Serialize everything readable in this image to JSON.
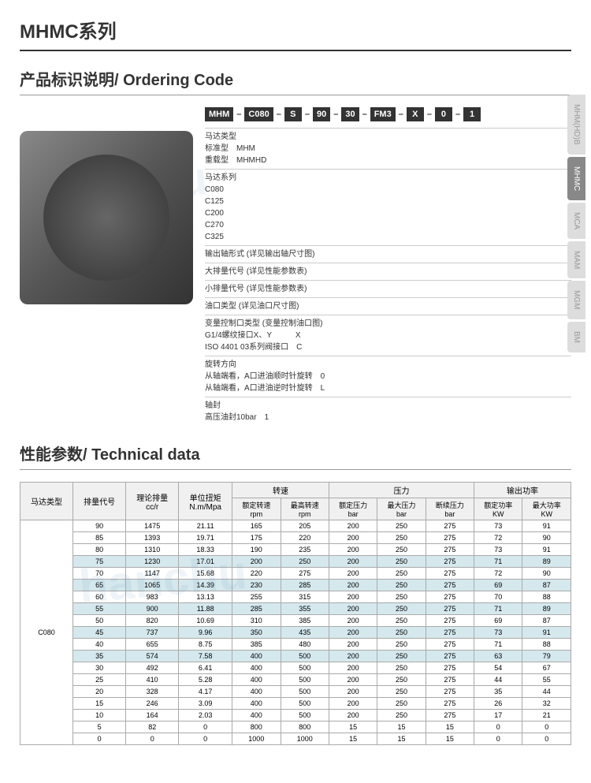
{
  "titles": {
    "main": "MHMC系列",
    "ordering": "产品标识说明/ Ordering Code",
    "technical": "性能参数/ Technical data"
  },
  "tabs": [
    "MHM(HD)B",
    "MHMC",
    "MCA",
    "MAM",
    "MGM",
    "BM"
  ],
  "active_tab_index": 1,
  "code_boxes": [
    "MHM",
    "C080",
    "S",
    "90",
    "30",
    "FM3",
    "X",
    "0",
    "1"
  ],
  "code_groups": [
    {
      "title": "马达类型",
      "lines": [
        "标准型　MHM",
        "重载型　MHMHD"
      ]
    },
    {
      "title": "马达系列",
      "lines": [
        "C080",
        "C125",
        "C200",
        "C270",
        "C325"
      ]
    },
    {
      "title": "输出轴形式 (详见输出轴尺寸图)",
      "lines": []
    },
    {
      "title": "大排量代号 (详见性能参数表)",
      "lines": []
    },
    {
      "title": "小排量代号 (详见性能参数表)",
      "lines": []
    },
    {
      "title": "油口类型 (详见油口尺寸图)",
      "lines": []
    },
    {
      "title": "变量控制口类型 (变量控制油口图)",
      "lines": [
        "G1/4螺纹接口X、Y　　　X",
        "ISO 4401 03系列阀接口　C"
      ]
    },
    {
      "title": "旋转方向",
      "lines": [
        "从轴端看，A口进油顺时针旋转　0",
        "从轴端看，A口进油逆时针旋转　L"
      ]
    },
    {
      "title": "轴封",
      "lines": [
        "高压油封10bar　1"
      ]
    }
  ],
  "table": {
    "group_headers": [
      "转速",
      "压力",
      "输出功率"
    ],
    "sub_headers": [
      "马达类型",
      "排量代号",
      "理论排量 cc/r",
      "单位扭矩 N.m/Mpa",
      "额定转速 rpm",
      "最高转速 rpm",
      "额定压力 bar",
      "最大压力 bar",
      "断续压力 bar",
      "额定功率 KW",
      "最大功率 KW"
    ],
    "motor_type": "C080",
    "rows": [
      {
        "d": [
          "90",
          "1475",
          "21.11",
          "165",
          "205",
          "200",
          "250",
          "275",
          "73",
          "91"
        ],
        "hl": false
      },
      {
        "d": [
          "85",
          "1393",
          "19.71",
          "175",
          "220",
          "200",
          "250",
          "275",
          "72",
          "90"
        ],
        "hl": false
      },
      {
        "d": [
          "80",
          "1310",
          "18.33",
          "190",
          "235",
          "200",
          "250",
          "275",
          "73",
          "91"
        ],
        "hl": false
      },
      {
        "d": [
          "75",
          "1230",
          "17.01",
          "200",
          "250",
          "200",
          "250",
          "275",
          "71",
          "89"
        ],
        "hl": true
      },
      {
        "d": [
          "70",
          "1147",
          "15.68",
          "220",
          "275",
          "200",
          "250",
          "275",
          "72",
          "90"
        ],
        "hl": false
      },
      {
        "d": [
          "65",
          "1065",
          "14.39",
          "230",
          "285",
          "200",
          "250",
          "275",
          "69",
          "87"
        ],
        "hl": true
      },
      {
        "d": [
          "60",
          "983",
          "13.13",
          "255",
          "315",
          "200",
          "250",
          "275",
          "70",
          "88"
        ],
        "hl": false
      },
      {
        "d": [
          "55",
          "900",
          "11.88",
          "285",
          "355",
          "200",
          "250",
          "275",
          "71",
          "89"
        ],
        "hl": true
      },
      {
        "d": [
          "50",
          "820",
          "10.69",
          "310",
          "385",
          "200",
          "250",
          "275",
          "69",
          "87"
        ],
        "hl": false
      },
      {
        "d": [
          "45",
          "737",
          "9.96",
          "350",
          "435",
          "200",
          "250",
          "275",
          "73",
          "91"
        ],
        "hl": true
      },
      {
        "d": [
          "40",
          "655",
          "8.75",
          "385",
          "480",
          "200",
          "250",
          "275",
          "71",
          "88"
        ],
        "hl": false
      },
      {
        "d": [
          "35",
          "574",
          "7.58",
          "400",
          "500",
          "200",
          "250",
          "275",
          "63",
          "79"
        ],
        "hl": true
      },
      {
        "d": [
          "30",
          "492",
          "6.41",
          "400",
          "500",
          "200",
          "250",
          "275",
          "54",
          "67"
        ],
        "hl": false
      },
      {
        "d": [
          "25",
          "410",
          "5.28",
          "400",
          "500",
          "200",
          "250",
          "275",
          "44",
          "55"
        ],
        "hl": false
      },
      {
        "d": [
          "20",
          "328",
          "4.17",
          "400",
          "500",
          "200",
          "250",
          "275",
          "35",
          "44"
        ],
        "hl": false
      },
      {
        "d": [
          "15",
          "246",
          "3.09",
          "400",
          "500",
          "200",
          "250",
          "275",
          "26",
          "32"
        ],
        "hl": false
      },
      {
        "d": [
          "10",
          "164",
          "2.03",
          "400",
          "500",
          "200",
          "250",
          "275",
          "17",
          "21"
        ],
        "hl": false
      },
      {
        "d": [
          "5",
          "82",
          "0",
          "800",
          "800",
          "15",
          "15",
          "15",
          "0",
          "0"
        ],
        "hl": false
      },
      {
        "d": [
          "0",
          "0",
          "0",
          "1000",
          "1000",
          "15",
          "15",
          "15",
          "0",
          "0"
        ],
        "hl": false
      }
    ]
  }
}
